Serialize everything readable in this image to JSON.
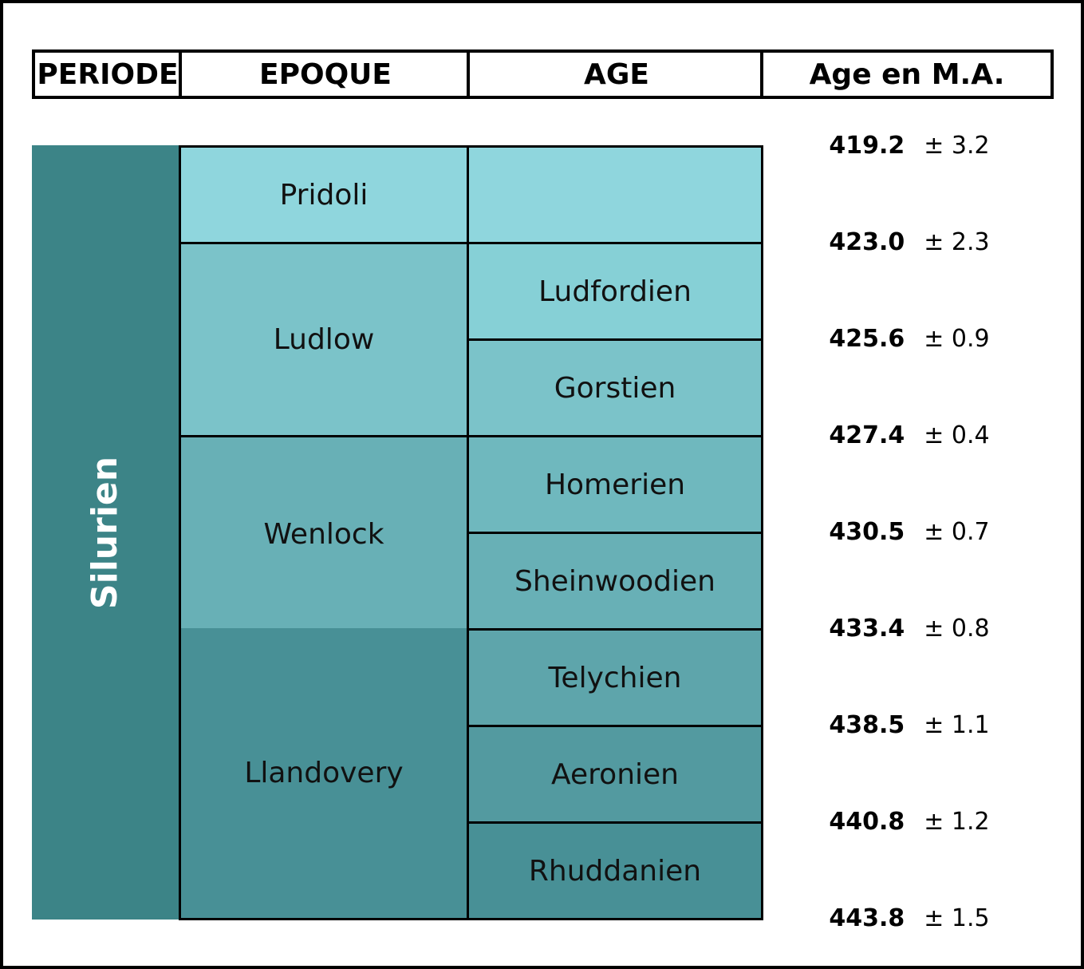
{
  "headers": {
    "periode": "PERIODE",
    "epoque": "EPOQUE",
    "age": "AGE",
    "age_ma": "Age en M.A."
  },
  "period": {
    "label": "Silurien",
    "color": "#3c8487"
  },
  "epochs": [
    {
      "label": "Pridoli",
      "color": "#8fd6dd"
    },
    {
      "label": "Ludlow",
      "color": "#7bc3c9"
    },
    {
      "label": "Wenlock",
      "color": "#68b0b6"
    },
    {
      "label": "Llandovery",
      "color": "#489096"
    }
  ],
  "stages": [
    {
      "label": "",
      "color": "#8fd6dd"
    },
    {
      "label": "Ludfordien",
      "color": "#86d0d6"
    },
    {
      "label": "Gorstien",
      "color": "#7bc3c9"
    },
    {
      "label": "Homerien",
      "color": "#6fb8be"
    },
    {
      "label": "Sheinwoodien",
      "color": "#68b0b6"
    },
    {
      "label": "Telychien",
      "color": "#5ea5ab"
    },
    {
      "label": "Aeronien",
      "color": "#539aa0"
    },
    {
      "label": "Rhuddanien",
      "color": "#489096"
    }
  ],
  "ages": [
    {
      "value": "419.2",
      "uncertainty": "± 3.2"
    },
    {
      "value": "423.0",
      "uncertainty": "± 2.3"
    },
    {
      "value": "425.6",
      "uncertainty": "± 0.9"
    },
    {
      "value": "427.4",
      "uncertainty": "± 0.4"
    },
    {
      "value": "430.5",
      "uncertainty": "± 0.7"
    },
    {
      "value": "433.4",
      "uncertainty": "± 0.8"
    },
    {
      "value": "438.5",
      "uncertainty": "± 1.1"
    },
    {
      "value": "440.8",
      "uncertainty": "± 1.2"
    },
    {
      "value": "443.8",
      "uncertainty": "± 1.5"
    }
  ]
}
